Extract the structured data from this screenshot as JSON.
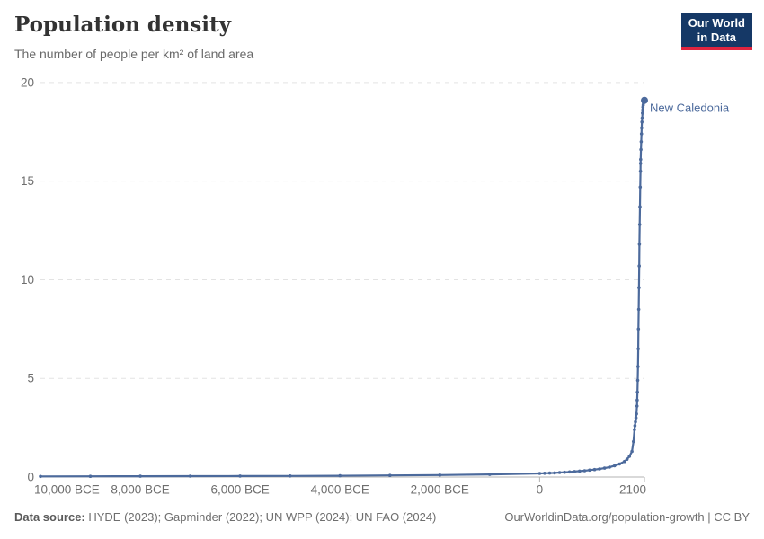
{
  "header": {
    "title": "Population density",
    "subtitle": "The number of people per km² of land area",
    "logo": {
      "line1": "Our World",
      "line2": "in Data",
      "bg": "#153866",
      "accent": "#e0243f"
    }
  },
  "footer": {
    "source_prefix": "Data source:",
    "source_text": " HYDE (2023); Gapminder (2022); UN WPP (2024); UN FAO (2024)",
    "right_text": "OurWorldinData.org/population-growth | CC BY"
  },
  "colors": {
    "line": "#4c6a9c",
    "grid": "#e3e3e3",
    "axis": "#b3b3b3",
    "axis_label": "#6e6e6e",
    "title": "#333333",
    "subtitle": "#696969",
    "background": "#ffffff"
  },
  "chart_data": {
    "type": "line",
    "title": "Population density",
    "subtitle": "The number of people per km² of land area",
    "xlabel": "",
    "ylabel": "",
    "xlim": [
      -10000,
      2100
    ],
    "ylim": [
      0,
      20
    ],
    "grid": "horizontal-dashed",
    "y_ticks": [
      0,
      5,
      10,
      15,
      20
    ],
    "x_ticks": [
      {
        "year": -10000,
        "label": "10,000 BCE",
        "align": "start",
        "label_x": 38
      },
      {
        "year": -8000,
        "label": "8,000 BCE"
      },
      {
        "year": -6000,
        "label": "6,000 BCE"
      },
      {
        "year": -4000,
        "label": "4,000 BCE"
      },
      {
        "year": -2000,
        "label": "2,000 BCE"
      },
      {
        "year": 0,
        "label": "0",
        "tick": true
      },
      {
        "year": 2100,
        "label": "2100",
        "tick": true,
        "dx": -13
      }
    ],
    "series": [
      {
        "name": "New Caledonia",
        "color": "#4c6a9c",
        "points": [
          [
            -10000,
            0.03
          ],
          [
            -9000,
            0.035
          ],
          [
            -8000,
            0.04
          ],
          [
            -7000,
            0.045
          ],
          [
            -6000,
            0.05
          ],
          [
            -5000,
            0.055
          ],
          [
            -4000,
            0.065
          ],
          [
            -3000,
            0.08
          ],
          [
            -2000,
            0.1
          ],
          [
            -1000,
            0.13
          ],
          [
            0,
            0.18
          ],
          [
            100,
            0.19
          ],
          [
            200,
            0.2
          ],
          [
            300,
            0.21
          ],
          [
            400,
            0.23
          ],
          [
            500,
            0.24
          ],
          [
            600,
            0.26
          ],
          [
            700,
            0.28
          ],
          [
            800,
            0.3
          ],
          [
            900,
            0.32
          ],
          [
            1000,
            0.35
          ],
          [
            1100,
            0.38
          ],
          [
            1200,
            0.41
          ],
          [
            1300,
            0.45
          ],
          [
            1400,
            0.5
          ],
          [
            1500,
            0.57
          ],
          [
            1600,
            0.66
          ],
          [
            1700,
            0.79
          ],
          [
            1750,
            0.9
          ],
          [
            1800,
            1.05
          ],
          [
            1850,
            1.3
          ],
          [
            1880,
            1.8
          ],
          [
            1900,
            2.4
          ],
          [
            1910,
            2.6
          ],
          [
            1920,
            2.8
          ],
          [
            1930,
            3.0
          ],
          [
            1940,
            3.2
          ],
          [
            1950,
            3.6
          ],
          [
            1955,
            3.9
          ],
          [
            1960,
            4.3
          ],
          [
            1965,
            4.9
          ],
          [
            1970,
            5.6
          ],
          [
            1975,
            6.5
          ],
          [
            1980,
            7.5
          ],
          [
            1985,
            8.5
          ],
          [
            1990,
            9.6
          ],
          [
            1995,
            10.7
          ],
          [
            2000,
            11.8
          ],
          [
            2005,
            12.8
          ],
          [
            2010,
            13.7
          ],
          [
            2015,
            14.7
          ],
          [
            2020,
            15.5
          ],
          [
            2023,
            15.9
          ],
          [
            2025,
            16.1
          ],
          [
            2030,
            16.6
          ],
          [
            2035,
            17.0
          ],
          [
            2040,
            17.4
          ],
          [
            2045,
            17.7
          ],
          [
            2050,
            18.0
          ],
          [
            2055,
            18.2
          ],
          [
            2060,
            18.45
          ],
          [
            2065,
            18.6
          ],
          [
            2070,
            18.75
          ],
          [
            2075,
            18.85
          ],
          [
            2080,
            18.95
          ],
          [
            2085,
            19.0
          ],
          [
            2090,
            19.05
          ],
          [
            2095,
            19.08
          ],
          [
            2100,
            19.1
          ]
        ]
      }
    ]
  }
}
